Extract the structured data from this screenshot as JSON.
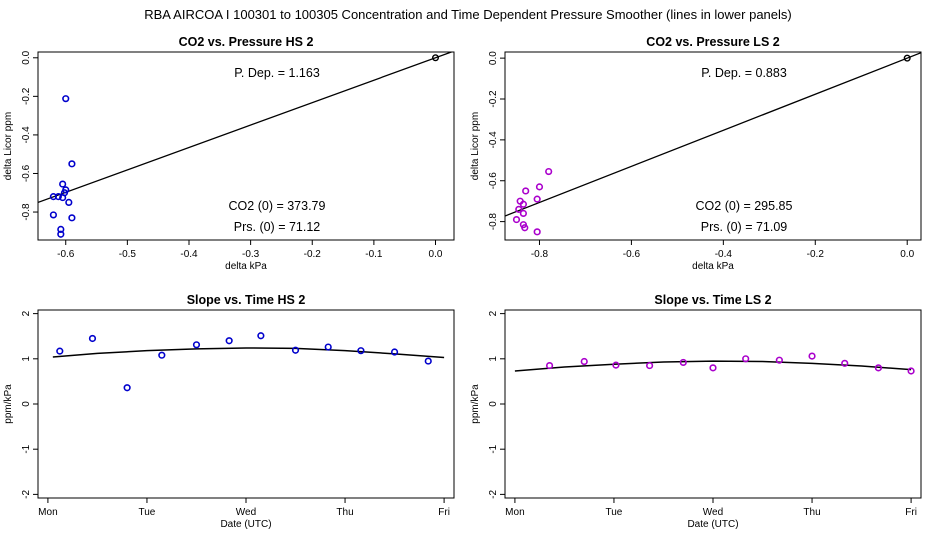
{
  "figure": {
    "title": "RBA   AIRCOA I   100301 to 100305   Concentration and Time Dependent Pressure Smoother (lines in lower panels)"
  },
  "chart_data": [
    {
      "type": "scatter",
      "title": "CO2 vs. Pressure HS 2",
      "xlabel": "delta kPa",
      "ylabel": "delta Licor ppm",
      "xlim": [
        -0.645,
        0.03
      ],
      "ylim": [
        -0.945,
        0.03
      ],
      "xticks": [
        -0.6,
        -0.5,
        -0.4,
        -0.3,
        -0.2,
        -0.1,
        0.0
      ],
      "xtick_labels": [
        "-0.6",
        "-0.5",
        "-0.4",
        "-0.3",
        "-0.2",
        "-0.1",
        "0.0"
      ],
      "yticks": [
        -0.8,
        -0.6,
        -0.4,
        -0.2,
        0.0
      ],
      "ytick_labels": [
        "-0.8",
        "-0.6",
        "-0.4",
        "-0.2",
        "0.0"
      ],
      "point_color": "#0000cc",
      "points": [
        [
          -0.6,
          -0.212
        ],
        [
          -0.59,
          -0.55
        ],
        [
          -0.605,
          -0.655
        ],
        [
          -0.6,
          -0.685
        ],
        [
          -0.602,
          -0.7
        ],
        [
          -0.612,
          -0.72
        ],
        [
          -0.62,
          -0.72
        ],
        [
          -0.605,
          -0.725
        ],
        [
          -0.595,
          -0.75
        ],
        [
          -0.59,
          -0.83
        ],
        [
          -0.62,
          -0.815
        ],
        [
          -0.608,
          -0.89
        ],
        [
          -0.608,
          -0.915
        ]
      ],
      "reference_point": [
        0.0,
        0.0
      ],
      "fit_line": {
        "slope": 1.163,
        "intercept": 0.0
      },
      "annotations": {
        "pdep": "P. Dep. =  1.163",
        "co2": "CO2 (0) =  373.79",
        "prs": "Prs. (0) = 71.12"
      }
    },
    {
      "type": "scatter",
      "title": "CO2 vs. Pressure LS 2",
      "xlabel": "delta kPa",
      "ylabel": "delta Licor ppm",
      "xlim": [
        -0.875,
        0.03
      ],
      "ylim": [
        -0.89,
        0.03
      ],
      "xticks": [
        -0.8,
        -0.6,
        -0.4,
        -0.2,
        0.0
      ],
      "xtick_labels": [
        "-0.8",
        "-0.6",
        "-0.4",
        "-0.2",
        "0.0"
      ],
      "yticks": [
        -0.8,
        -0.6,
        -0.4,
        -0.2,
        0.0
      ],
      "ytick_labels": [
        "-0.8",
        "-0.6",
        "-0.4",
        "-0.2",
        "0.0"
      ],
      "point_color": "#aa00cc",
      "points": [
        [
          -0.78,
          -0.555
        ],
        [
          -0.8,
          -0.63
        ],
        [
          -0.83,
          -0.65
        ],
        [
          -0.842,
          -0.7
        ],
        [
          -0.835,
          -0.715
        ],
        [
          -0.805,
          -0.69
        ],
        [
          -0.845,
          -0.74
        ],
        [
          -0.835,
          -0.76
        ],
        [
          -0.85,
          -0.79
        ],
        [
          -0.835,
          -0.815
        ],
        [
          -0.832,
          -0.83
        ],
        [
          -0.805,
          -0.85
        ]
      ],
      "reference_point": [
        0.0,
        0.0
      ],
      "fit_line": {
        "slope": 0.883,
        "intercept": 0.0
      },
      "annotations": {
        "pdep": "P. Dep. =  0.883",
        "co2": "CO2 (0) =  295.85",
        "prs": "Prs. (0) = 71.09"
      }
    },
    {
      "type": "scatter",
      "title": "Slope vs. Time HS 2",
      "xlabel": "Date (UTC)",
      "ylabel": "ppm/kPa",
      "xlim": [
        -0.1,
        4.1
      ],
      "ylim": [
        -2.08,
        2.08
      ],
      "xticks": [
        0,
        1,
        2,
        3,
        4
      ],
      "xtick_labels": [
        "Mon",
        "Tue",
        "Wed",
        "Thu",
        "Fri"
      ],
      "yticks": [
        -2,
        -1,
        0,
        1,
        2
      ],
      "ytick_labels": [
        "-2",
        "-1",
        "0",
        "1",
        "2"
      ],
      "point_color": "#0000cc",
      "points": [
        [
          0.12,
          1.17
        ],
        [
          0.45,
          1.45
        ],
        [
          0.8,
          0.36
        ],
        [
          1.15,
          1.08
        ],
        [
          1.5,
          1.31
        ],
        [
          1.83,
          1.4
        ],
        [
          2.15,
          1.51
        ],
        [
          2.5,
          1.19
        ],
        [
          2.83,
          1.26
        ],
        [
          3.16,
          1.18
        ],
        [
          3.5,
          1.15
        ],
        [
          3.84,
          0.95
        ]
      ],
      "smoother": {
        "x": [
          0.05,
          0.5,
          1.0,
          1.5,
          2.0,
          2.5,
          3.0,
          3.5,
          4.0
        ],
        "y": [
          1.04,
          1.12,
          1.18,
          1.22,
          1.24,
          1.23,
          1.18,
          1.11,
          1.03
        ]
      }
    },
    {
      "type": "scatter",
      "title": "Slope vs. Time LS 2",
      "xlabel": "Date (UTC)",
      "ylabel": "ppm/kPa",
      "xlim": [
        -0.1,
        4.1
      ],
      "ylim": [
        -2.08,
        2.08
      ],
      "xticks": [
        0,
        1,
        2,
        3,
        4
      ],
      "xtick_labels": [
        "Mon",
        "Tue",
        "Wed",
        "Thu",
        "Fri"
      ],
      "yticks": [
        -2,
        -1,
        0,
        1,
        2
      ],
      "ytick_labels": [
        "-2",
        "-1",
        "0",
        "1",
        "2"
      ],
      "point_color": "#aa00cc",
      "points": [
        [
          0.35,
          0.85
        ],
        [
          0.7,
          0.94
        ],
        [
          1.02,
          0.86
        ],
        [
          1.36,
          0.85
        ],
        [
          1.7,
          0.92
        ],
        [
          2.0,
          0.8
        ],
        [
          2.33,
          1.0
        ],
        [
          2.67,
          0.97
        ],
        [
          3.0,
          1.06
        ],
        [
          3.33,
          0.9
        ],
        [
          3.67,
          0.8
        ],
        [
          4.0,
          0.73
        ]
      ],
      "smoother": {
        "x": [
          0.0,
          0.5,
          1.0,
          1.5,
          2.0,
          2.5,
          3.0,
          3.5,
          4.0
        ],
        "y": [
          0.73,
          0.82,
          0.88,
          0.93,
          0.95,
          0.94,
          0.9,
          0.84,
          0.76
        ]
      }
    }
  ]
}
